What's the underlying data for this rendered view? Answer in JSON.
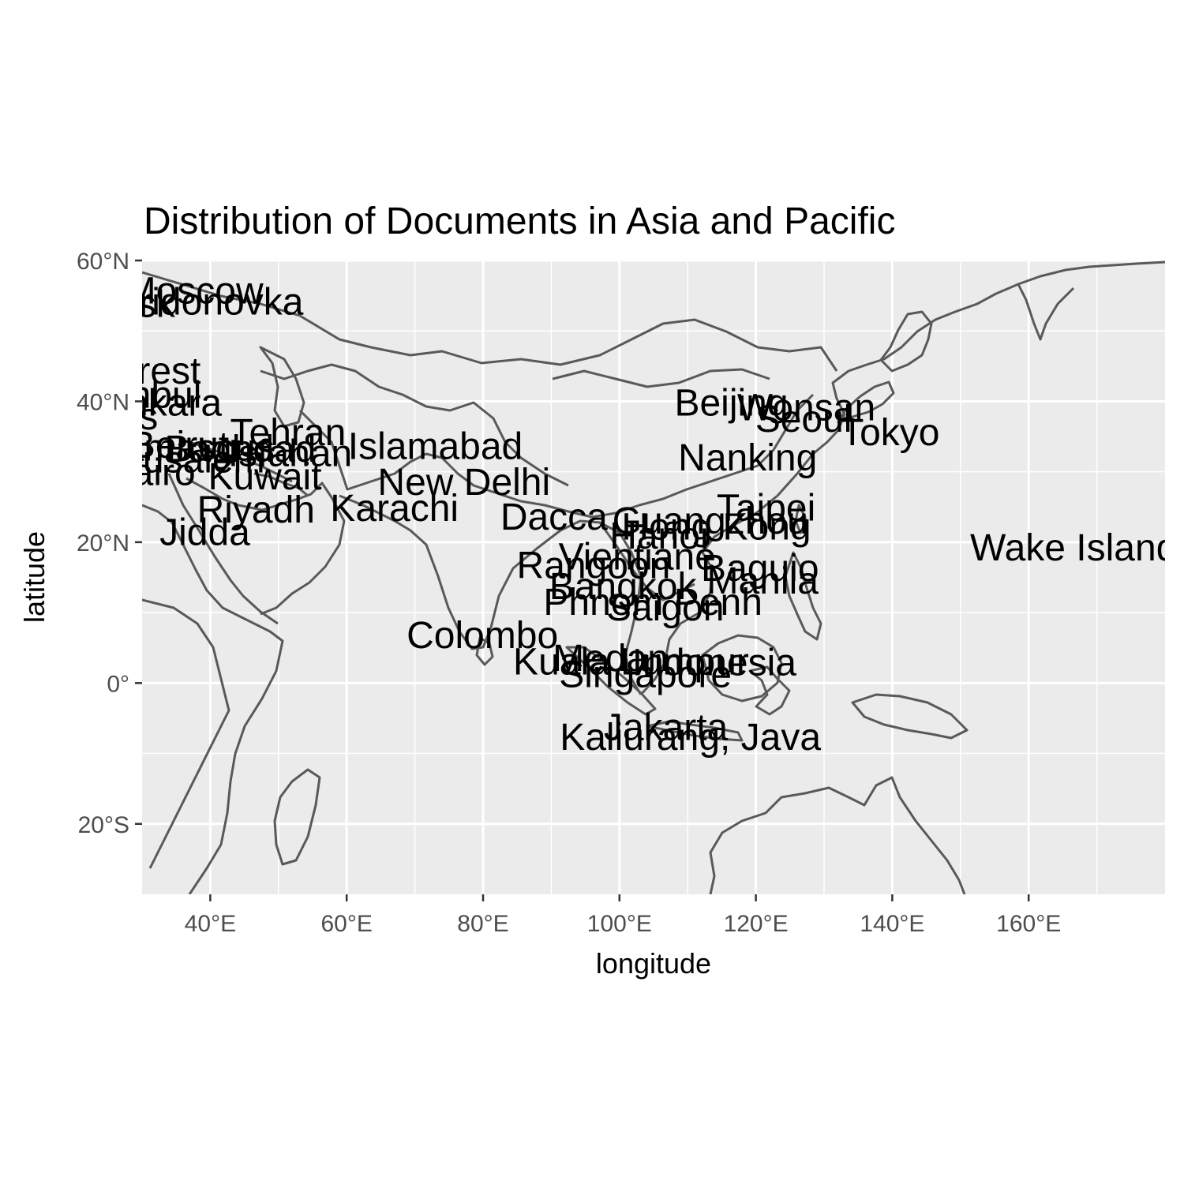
{
  "chart_data": {
    "type": "map",
    "title": "Distribution of Documents in Asia and Pacific",
    "xlabel": "longitude",
    "ylabel": "latitude",
    "xlim": [
      30,
      180
    ],
    "ylim": [
      -30,
      60
    ],
    "x_ticks": [
      {
        "value": 40,
        "label": "40°E"
      },
      {
        "value": 60,
        "label": "60°E"
      },
      {
        "value": 80,
        "label": "80°E"
      },
      {
        "value": 100,
        "label": "100°E"
      },
      {
        "value": 120,
        "label": "120°E"
      },
      {
        "value": 140,
        "label": "140°E"
      },
      {
        "value": 160,
        "label": "160°E"
      }
    ],
    "y_ticks": [
      {
        "value": 60,
        "label": "60°N"
      },
      {
        "value": 40,
        "label": "40°N"
      },
      {
        "value": 20,
        "label": "20°N"
      },
      {
        "value": 0,
        "label": "0°"
      },
      {
        "value": -20,
        "label": "20°S"
      }
    ],
    "minor_x": [
      50,
      70,
      90,
      110,
      130,
      150,
      170
    ],
    "minor_y": [
      50,
      30,
      10,
      -10
    ],
    "panel_background": "#ebebeb",
    "land_fill": "#e5e5e5",
    "border_color": "#595959",
    "grid": true,
    "points": [
      {
        "label": "Moscow",
        "lon": 37.6,
        "lat": 55.8
      },
      {
        "label": "Spiridonovka",
        "lon": 37.6,
        "lat": 54.2
      },
      {
        "label": "Minsk",
        "lon": 27.6,
        "lat": 53.9
      },
      {
        "label": "Bucharest",
        "lon": 26.1,
        "lat": 44.4
      },
      {
        "label": "Istanbul",
        "lon": 29.0,
        "lat": 41.0
      },
      {
        "label": "Ankara",
        "lon": 32.9,
        "lat": 39.9
      },
      {
        "label": "Athens",
        "lon": 23.7,
        "lat": 37.9
      },
      {
        "label": "Tehran",
        "lon": 51.4,
        "lat": 35.7
      },
      {
        "label": "Baghdad",
        "lon": 44.4,
        "lat": 33.3
      },
      {
        "label": "Damascus",
        "lon": 36.3,
        "lat": 33.5
      },
      {
        "label": "Beirut",
        "lon": 35.5,
        "lat": 33.9
      },
      {
        "label": "Isfahan",
        "lon": 51.7,
        "lat": 32.7
      },
      {
        "label": "Jerusalem",
        "lon": 35.2,
        "lat": 31.8
      },
      {
        "label": "Cairo",
        "lon": 31.2,
        "lat": 30.0
      },
      {
        "label": "Kuwait",
        "lon": 48.0,
        "lat": 29.4
      },
      {
        "label": "New Delhi",
        "lon": 77.2,
        "lat": 28.6
      },
      {
        "label": "Riyadh",
        "lon": 46.7,
        "lat": 24.7
      },
      {
        "label": "Karachi",
        "lon": 67.0,
        "lat": 24.9
      },
      {
        "label": "Dacca",
        "lon": 90.4,
        "lat": 23.7
      },
      {
        "label": "Islamabad",
        "lon": 73.0,
        "lat": 33.7
      },
      {
        "label": "Jidda",
        "lon": 39.2,
        "lat": 21.5
      },
      {
        "label": "Beijing",
        "lon": 116.4,
        "lat": 39.9
      },
      {
        "label": "Seoul",
        "lon": 127.0,
        "lat": 37.6
      },
      {
        "label": "Wonsan",
        "lon": 127.4,
        "lat": 39.2
      },
      {
        "label": "Tokyo",
        "lon": 139.7,
        "lat": 35.7
      },
      {
        "label": "Nanking",
        "lon": 118.8,
        "lat": 32.1
      },
      {
        "label": "Taipei",
        "lon": 121.5,
        "lat": 25.0
      },
      {
        "label": "Hong Kong",
        "lon": 114.2,
        "lat": 22.3
      },
      {
        "label": "Guangzhou",
        "lon": 113.3,
        "lat": 23.1
      },
      {
        "label": "Hanoi",
        "lon": 105.8,
        "lat": 21.0
      },
      {
        "label": "Vientiane",
        "lon": 102.6,
        "lat": 18.0
      },
      {
        "label": "Rangoon",
        "lon": 96.2,
        "lat": 16.8
      },
      {
        "label": "Baguio",
        "lon": 120.6,
        "lat": 16.4
      },
      {
        "label": "Manila",
        "lon": 121.0,
        "lat": 14.6
      },
      {
        "label": "Bangkok",
        "lon": 100.5,
        "lat": 13.8
      },
      {
        "label": "Phnom Penh",
        "lon": 104.9,
        "lat": 11.6
      },
      {
        "label": "Saigon",
        "lon": 106.7,
        "lat": 10.8
      },
      {
        "label": "Wake Island",
        "lon": 166.6,
        "lat": 19.3
      },
      {
        "label": "Colombo",
        "lon": 79.9,
        "lat": 6.9
      },
      {
        "label": "Medan",
        "lon": 98.7,
        "lat": 3.6
      },
      {
        "label": "Kuala Lumpur",
        "lon": 101.7,
        "lat": 3.1
      },
      {
        "label": "Indonesia",
        "lon": 113.9,
        "lat": 3.0
      },
      {
        "label": "Singapore",
        "lon": 103.8,
        "lat": 1.3
      },
      {
        "label": "Jakarta",
        "lon": 106.8,
        "lat": -6.2
      },
      {
        "label": "Kaliurang, Java",
        "lon": 110.4,
        "lat": -7.6
      }
    ]
  }
}
